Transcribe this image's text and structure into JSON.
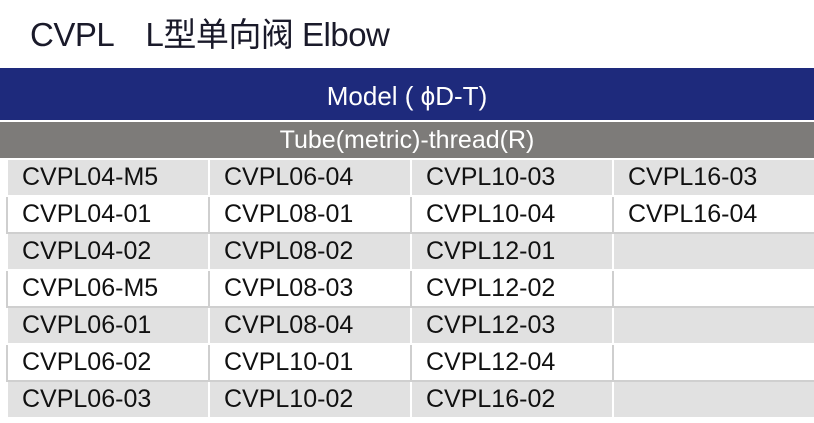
{
  "title": "CVPL　L型单向阀 Elbow",
  "header": "Model ( ϕD-T)",
  "subheader": "Tube(metric)-thread(R)",
  "rows": [
    [
      "CVPL04-M5",
      "CVPL06-04",
      "CVPL10-03",
      "CVPL16-03"
    ],
    [
      "CVPL04-01",
      "CVPL08-01",
      "CVPL10-04",
      "CVPL16-04"
    ],
    [
      "CVPL04-02",
      "CVPL08-02",
      "CVPL12-01",
      ""
    ],
    [
      "CVPL06-M5",
      "CVPL08-03",
      "CVPL12-02",
      ""
    ],
    [
      "CVPL06-01",
      "CVPL08-04",
      "CVPL12-03",
      ""
    ],
    [
      "CVPL06-02",
      "CVPL10-01",
      "CVPL12-04",
      ""
    ],
    [
      "CVPL06-03",
      "CVPL10-02",
      "CVPL16-02",
      ""
    ]
  ],
  "colors": {
    "header_bg": "#1e2a7c",
    "subheader_bg": "#7d7b79",
    "row_alt": "#e1e1e1"
  }
}
